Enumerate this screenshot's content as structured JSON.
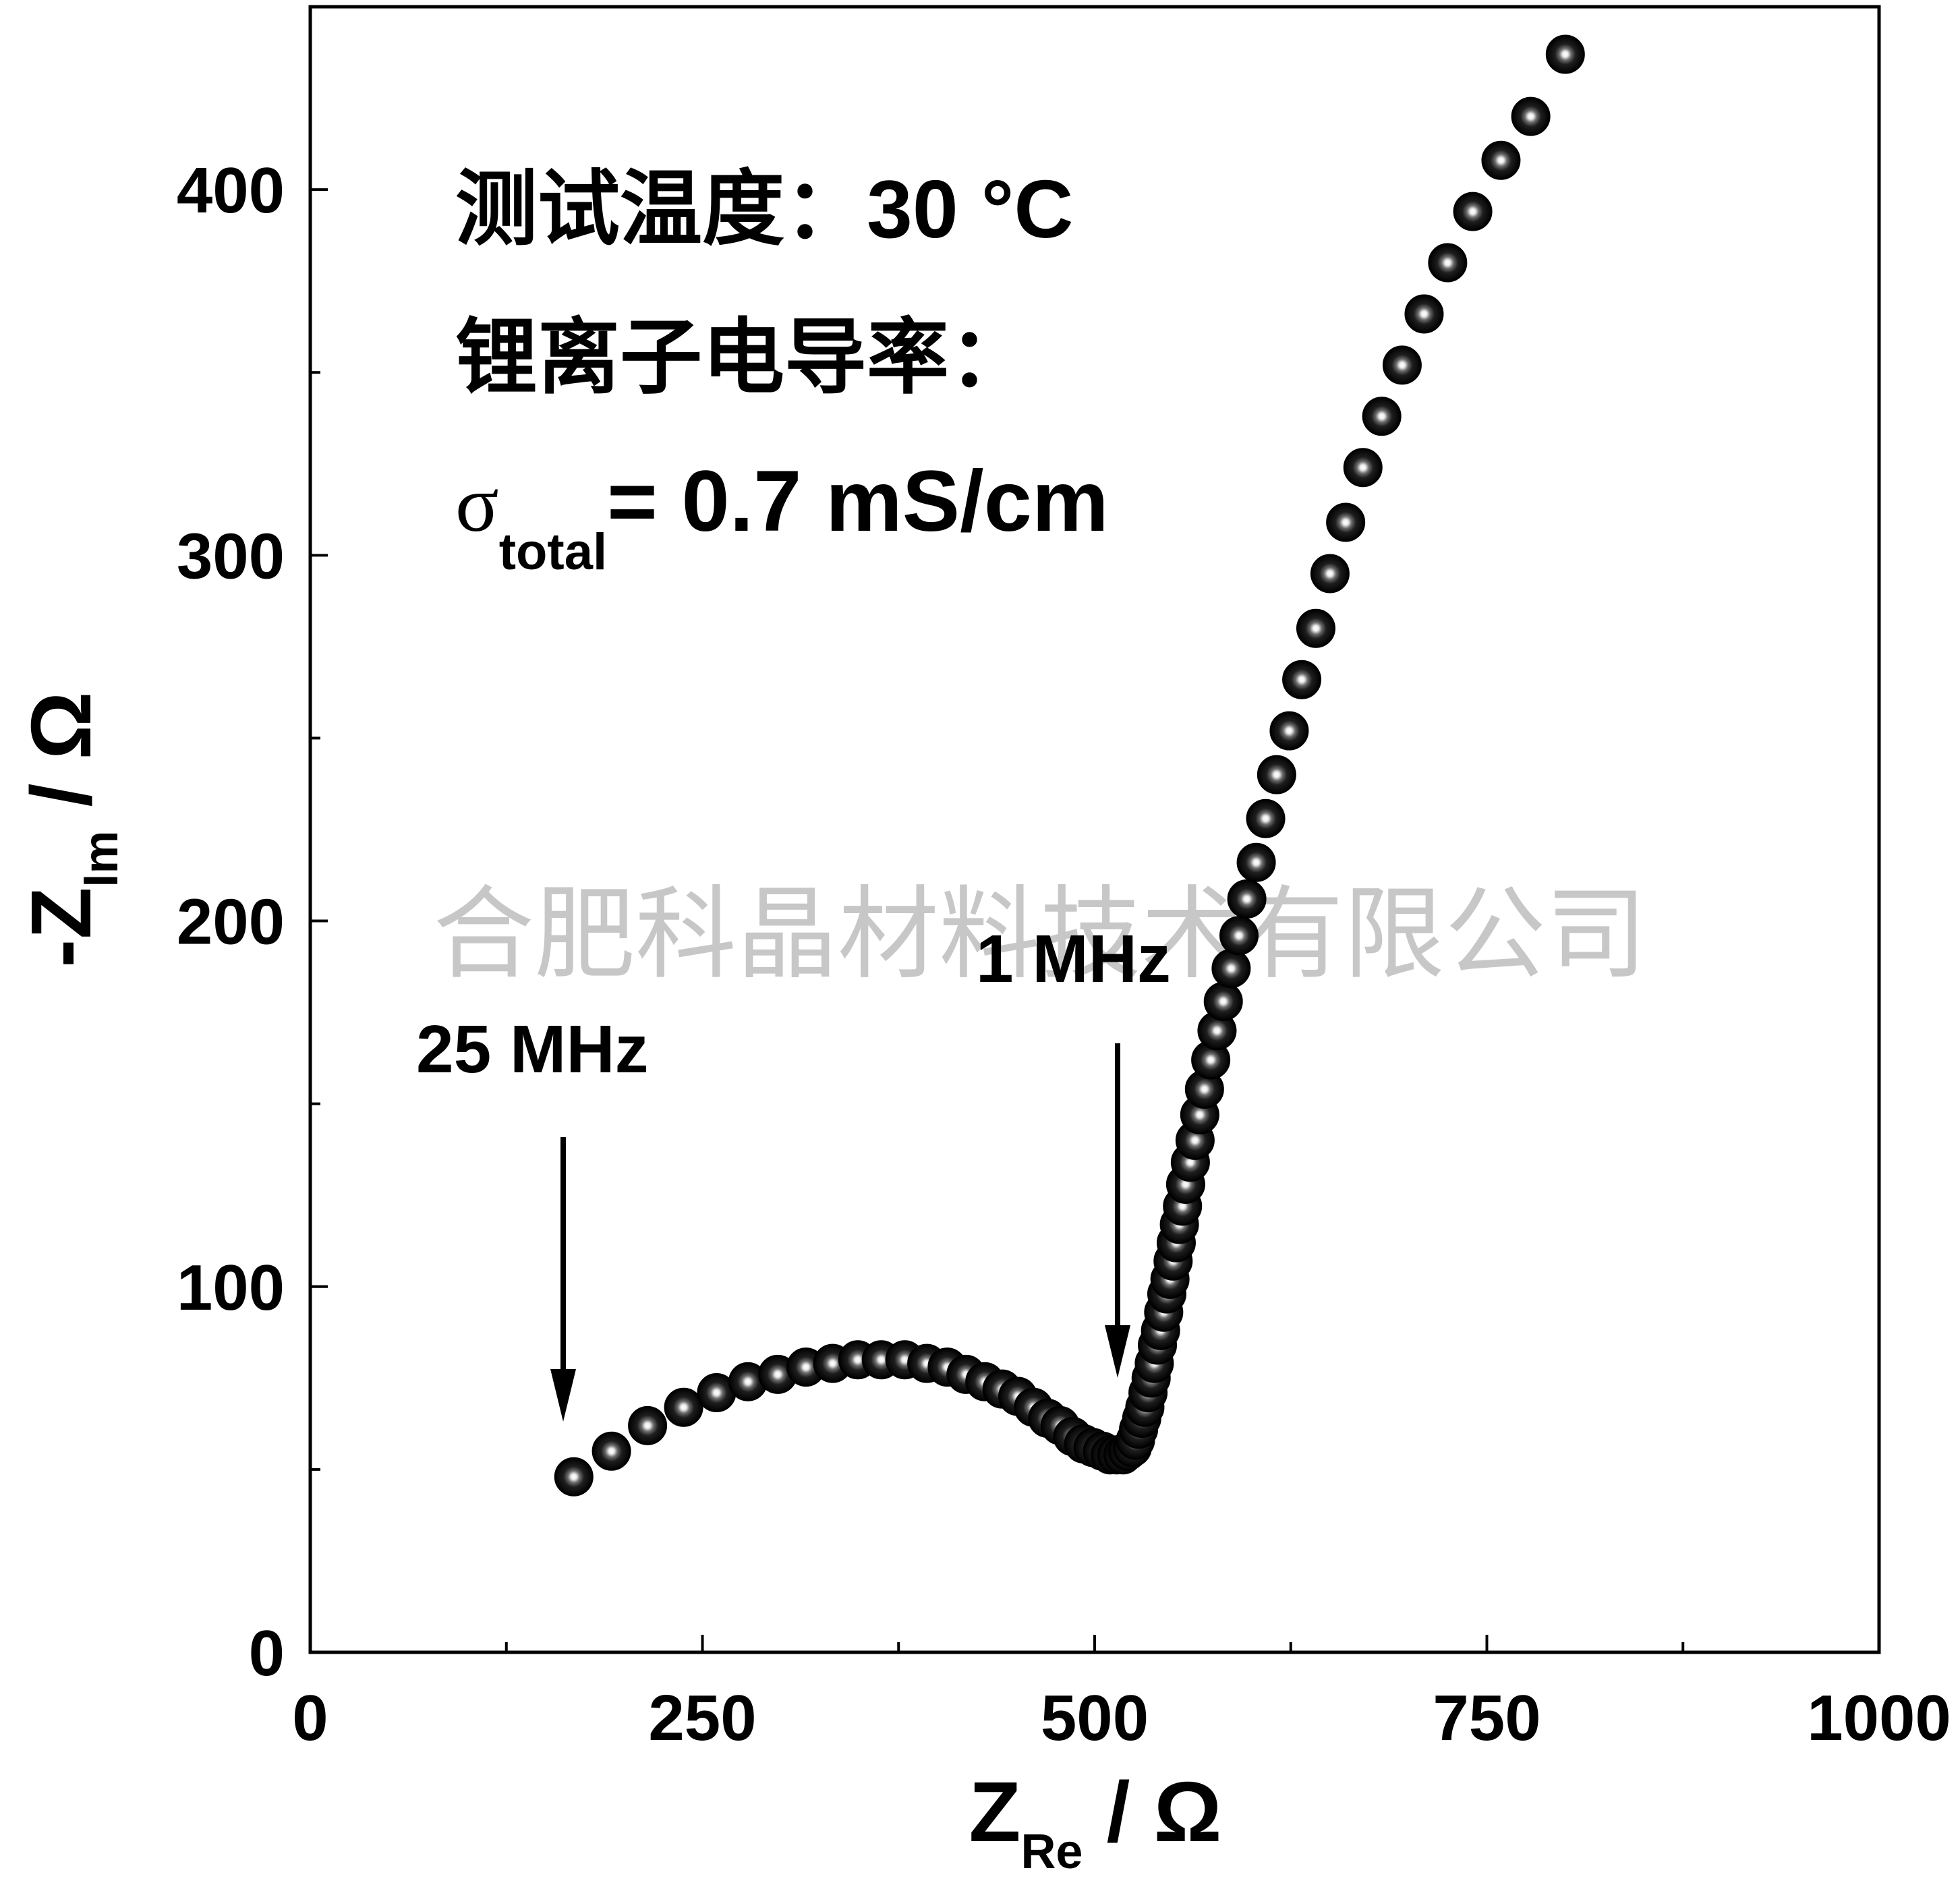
{
  "chart_data": {
    "type": "scatter",
    "xlabel": {
      "main": "Z",
      "sub": "Re",
      "unit": " / Ω"
    },
    "ylabel": {
      "main": "-Z",
      "sub": "Im",
      "unit": " / Ω"
    },
    "xlim": [
      0,
      1000
    ],
    "ylim": [
      0,
      450
    ],
    "x_ticks": [
      0,
      250,
      500,
      750,
      1000
    ],
    "x_tick_labels": [
      "0",
      "250",
      "500",
      "750",
      "1000"
    ],
    "y_ticks": [
      0,
      100,
      200,
      300,
      400
    ],
    "y_tick_labels": [
      "0",
      "100",
      "200",
      "300",
      "400"
    ],
    "grid": false,
    "legend": "none",
    "marker_color": "#000000",
    "series": [
      {
        "x": [
          168,
          192,
          215,
          238,
          259,
          279,
          298,
          316,
          333,
          349,
          364,
          379,
          393,
          406,
          418,
          430,
          441,
          451,
          461,
          470,
          478,
          486,
          493,
          499,
          505,
          510,
          514,
          518,
          521,
          524,
          526,
          528,
          530,
          532,
          534,
          536,
          538,
          540,
          542,
          544,
          546,
          548,
          550,
          552,
          554,
          556,
          558,
          561,
          564,
          567,
          570,
          574,
          578,
          582,
          587,
          592,
          597,
          603,
          609,
          616,
          624,
          632,
          641,
          650,
          660,
          671,
          683,
          696,
          710,
          725,
          741,
          759,
          778,
          800
        ],
        "y": [
          48,
          55,
          62,
          67,
          71,
          74,
          76,
          78,
          79,
          80,
          80,
          80,
          79,
          78,
          76,
          74,
          72,
          70,
          67,
          64,
          62,
          59,
          57,
          56,
          55,
          54,
          54,
          54,
          55,
          56,
          58,
          61,
          64,
          67,
          71,
          75,
          79,
          84,
          88,
          93,
          98,
          102,
          107,
          112,
          117,
          122,
          128,
          134,
          140,
          147,
          154,
          162,
          170,
          178,
          187,
          196,
          206,
          216,
          228,
          240,
          252,
          266,
          280,
          295,
          309,
          324,
          338,
          352,
          366,
          380,
          394,
          408,
          420,
          437
        ]
      }
    ],
    "annotations": {
      "line1": "测试温度：",
      "line1_value": "30 °C",
      "line2": "锂离子电导率：",
      "sigma_symbol": "σ",
      "sigma_sub": "total",
      "sigma_value": "= 0.7 mS/cm",
      "arrow_high": "25 MHz",
      "arrow_low": "1 MHz",
      "watermark": "合肥科晶材料技术有限公司"
    }
  }
}
